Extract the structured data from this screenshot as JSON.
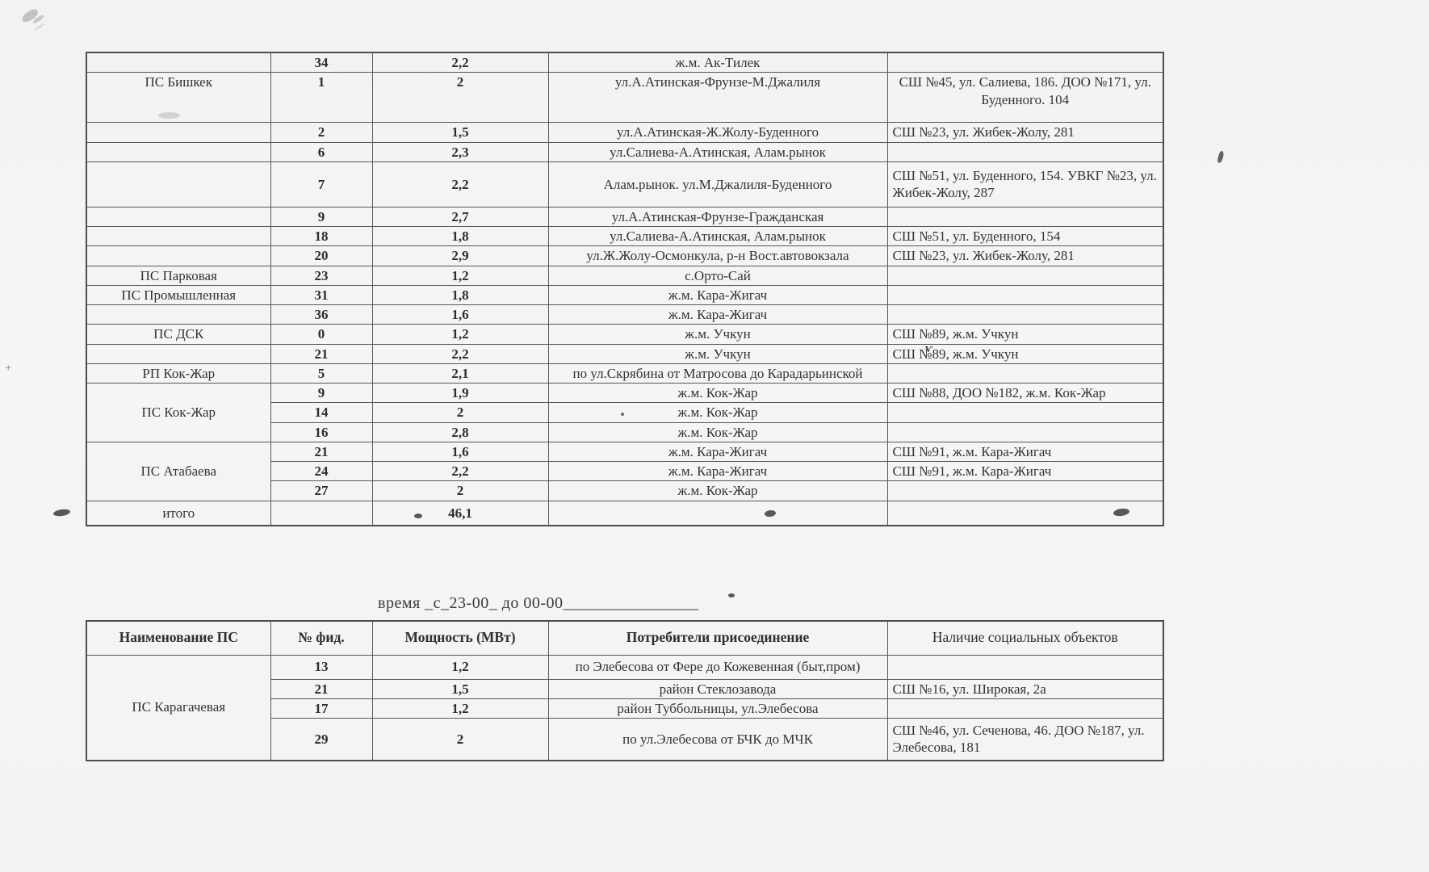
{
  "time_note": "время _с_23-00_ до 00-00________________",
  "table1": {
    "rows": [
      {
        "name": "",
        "feeder": "34",
        "power": "2,2",
        "consumer": "ж.м. Ак-Тилек",
        "social": ""
      },
      {
        "name": "ПС Бишкек",
        "feeder": "1",
        "power": "2",
        "consumer": "ул.А.Атинская-Фрунзе-М.Джалиля",
        "social": "СШ №45, ул. Салиева, 186. ДОО №171, ул. Буденного. 104"
      },
      {
        "name": "",
        "feeder": "2",
        "power": "1,5",
        "consumer": "ул.А.Атинская-Ж.Жолу-Буденного",
        "social": "СШ №23, ул. Жибек-Жолу, 281"
      },
      {
        "name": "",
        "feeder": "6",
        "power": "2,3",
        "consumer": "ул.Салиева-А.Атинская, Алам.рынок",
        "social": ""
      },
      {
        "name": "",
        "feeder": "7",
        "power": "2,2",
        "consumer": "Алам.рынок. ул.М.Джалиля-Буденного",
        "social": "СШ №51, ул. Буденного, 154. УВКГ №23, ул. Жибек-Жолу, 287"
      },
      {
        "name": "",
        "feeder": "9",
        "power": "2,7",
        "consumer": "ул.А.Атинская-Фрунзе-Гражданская",
        "social": ""
      },
      {
        "name": "",
        "feeder": "18",
        "power": "1,8",
        "consumer": "ул.Салиева-А.Атинская, Алам.рынок",
        "social": "СШ №51, ул. Буденного, 154"
      },
      {
        "name": "",
        "feeder": "20",
        "power": "2,9",
        "consumer": "ул.Ж.Жолу-Осмонкула, р-н Вост.автовокзала",
        "social": "СШ №23, ул. Жибек-Жолу, 281"
      },
      {
        "name": "ПС Парковая",
        "feeder": "23",
        "power": "1,2",
        "consumer": "с.Орто-Сай",
        "social": ""
      },
      {
        "name": "ПС Промышленная",
        "feeder": "31",
        "power": "1,8",
        "consumer": "ж.м. Кара-Жигач",
        "social": ""
      },
      {
        "name": "",
        "feeder": "36",
        "power": "1,6",
        "consumer": "ж.м. Кара-Жигач",
        "social": ""
      },
      {
        "name": "ПС ДСК",
        "feeder": "0",
        "power": "1,2",
        "consumer": "ж.м. Учкун",
        "social": "СШ №89, ж.м. Учкун"
      },
      {
        "name": "",
        "feeder": "21",
        "power": "2,2",
        "consumer": "ж.м. Учкун",
        "social": "СШ №89, ж.м. Учкун"
      },
      {
        "name": "РП Кок-Жар",
        "feeder": "5",
        "power": "2,1",
        "consumer": "по ул.Скрябина от Матросова до Карадарьинской",
        "social": ""
      },
      {
        "name": "ПС Кок-Жар",
        "span": 3,
        "feeder": "9",
        "power": "1,9",
        "consumer": "ж.м. Кок-Жар",
        "social": "СШ №88, ДОО №182, ж.м. Кок-Жар"
      },
      {
        "feeder": "14",
        "power": "2",
        "consumer": "ж.м. Кок-Жар",
        "social": ""
      },
      {
        "feeder": "16",
        "power": "2,8",
        "consumer": "ж.м. Кок-Жар",
        "social": ""
      },
      {
        "name": "ПС Атабаева",
        "span": 3,
        "feeder": "21",
        "power": "1,6",
        "consumer": "ж.м. Кара-Жигач",
        "social": "СШ №91, ж.м. Кара-Жигач"
      },
      {
        "feeder": "24",
        "power": "2,2",
        "consumer": "ж.м. Кара-Жигач",
        "social": "СШ №91, ж.м. Кара-Жигач"
      },
      {
        "feeder": "27",
        "power": "2",
        "consumer": "ж.м. Кок-Жар",
        "social": ""
      },
      {
        "name": "итого",
        "feeder": "",
        "power": "46,1",
        "consumer": "",
        "social": ""
      }
    ]
  },
  "table2": {
    "headers": [
      "Наименование ПС",
      "№ фид.",
      "Мощность (МВт)",
      "Потребители присоединение",
      "Наличие социальных объектов"
    ],
    "rows": [
      {
        "name": "ПС Карагачевая",
        "span": 4,
        "feeder": "13",
        "power": "1,2",
        "consumer": "по Элебесова от Фере до Кожевенная (быт,пром)",
        "social": ""
      },
      {
        "feeder": "21",
        "power": "1,5",
        "consumer": "район Стеклозавода",
        "social": "СШ №16, ул. Широкая, 2а"
      },
      {
        "feeder": "17",
        "power": "1,2",
        "consumer": "район Туббольницы, ул.Элебесова",
        "social": ""
      },
      {
        "feeder": "29",
        "power": "2",
        "consumer": "по ул.Элебесова от БЧК до МЧК",
        "social": "СШ №46, ул. Сеченова, 46. ДОО №187, ул. Элебесова, 181"
      }
    ]
  }
}
